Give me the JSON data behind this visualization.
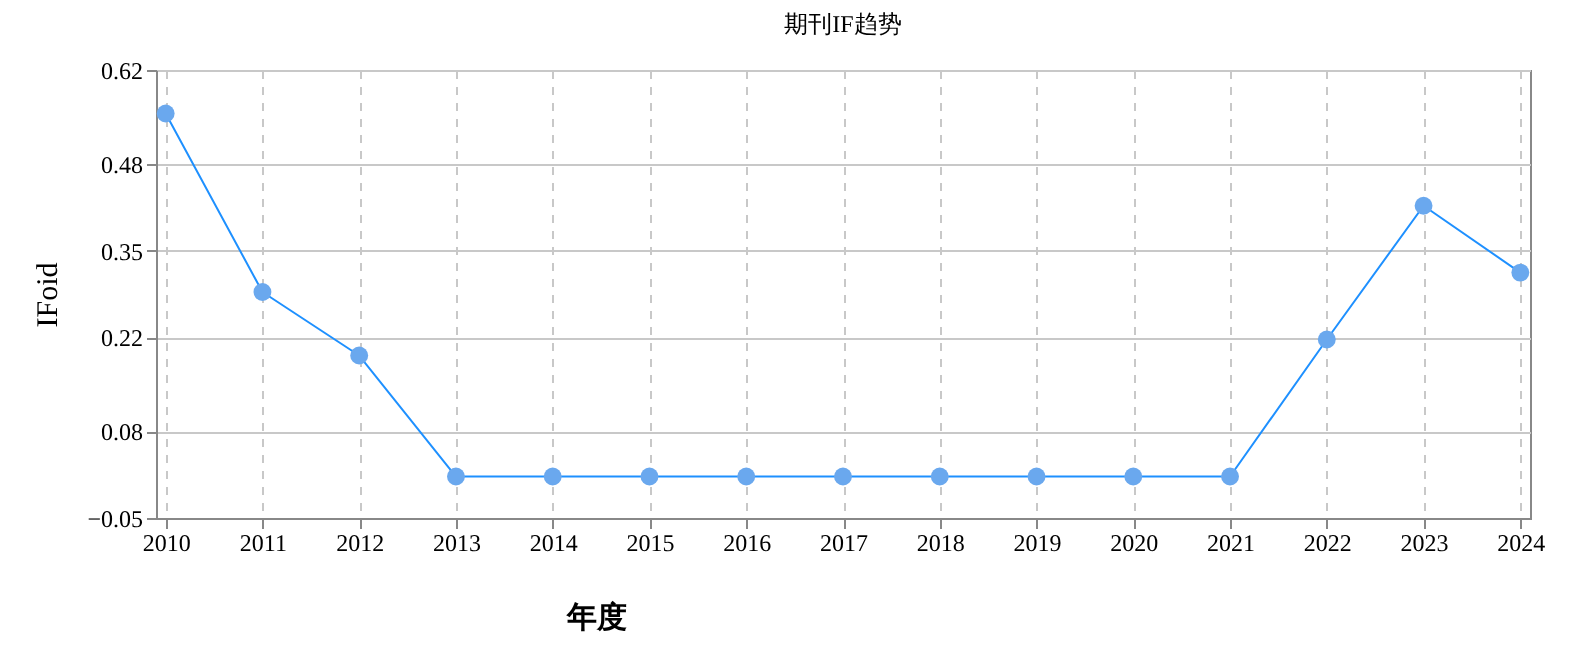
{
  "chart_data": {
    "type": "line",
    "title": "期刊IF趋势",
    "xlabel": "年度",
    "ylabel": "IFoid",
    "categories": [
      "2010",
      "2011",
      "2012",
      "2013",
      "2014",
      "2015",
      "2016",
      "2017",
      "2018",
      "2019",
      "2020",
      "2021",
      "2022",
      "2023",
      "2024"
    ],
    "series": [
      {
        "color": "#1e90ff",
        "values": [
          0.555,
          0.288,
          0.193,
          0.012,
          0.012,
          0.012,
          0.012,
          0.012,
          0.012,
          0.012,
          0.012,
          0.012,
          0.217,
          0.417,
          0.317
        ]
      }
    ],
    "ylim": [
      -0.05,
      0.62
    ],
    "yticks": [
      -0.05,
      0.08,
      0.22,
      0.35,
      0.48,
      0.62
    ],
    "grid": true,
    "marker": "circle",
    "line_style": "solid"
  }
}
